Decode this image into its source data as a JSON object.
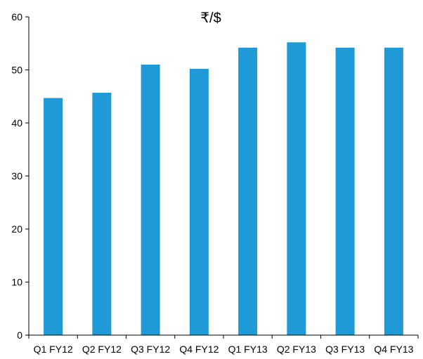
{
  "chart_data": {
    "type": "bar",
    "title": "₹/$",
    "xlabel": "",
    "ylabel": "",
    "categories": [
      "Q1 FY12",
      "Q2 FY12",
      "Q3 FY12",
      "Q4 FY12",
      "Q1 FY13",
      "Q2 FY13",
      "Q3 FY13",
      "Q4 FY13"
    ],
    "values": [
      44.7,
      45.7,
      51.0,
      50.2,
      54.2,
      55.2,
      54.2,
      54.2
    ],
    "ylim": [
      0,
      60
    ],
    "yticks": [
      0,
      10,
      20,
      30,
      40,
      50,
      60
    ],
    "bar_color": "#1f9ad6",
    "grid": false,
    "legend": "none"
  }
}
